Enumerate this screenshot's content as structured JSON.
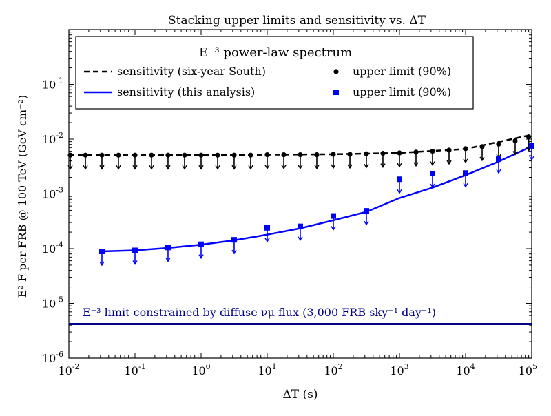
{
  "chart_data": {
    "type": "scatter",
    "title": "Stacking upper limits and sensitivity vs. ΔT",
    "xlabel": "ΔT (s)",
    "ylabel": "E² F per FRB @ 100 TeV (GeV cm⁻²)",
    "xscale": "log",
    "yscale": "log",
    "xlim": [
      0.01,
      100000
    ],
    "ylim": [
      1e-06,
      1
    ],
    "grid": false,
    "legend_placement": "upper-left",
    "x_ticks": [
      {
        "value": 0.01,
        "base": "10",
        "exp": "-2"
      },
      {
        "value": 0.1,
        "base": "10",
        "exp": "-1"
      },
      {
        "value": 1,
        "base": "10",
        "exp": "0"
      },
      {
        "value": 10,
        "base": "10",
        "exp": "1"
      },
      {
        "value": 100,
        "base": "10",
        "exp": "2"
      },
      {
        "value": 1000,
        "base": "10",
        "exp": "3"
      },
      {
        "value": 10000,
        "base": "10",
        "exp": "4"
      },
      {
        "value": 100000,
        "base": "10",
        "exp": "5"
      }
    ],
    "y_ticks": [
      {
        "value": 1e-06,
        "base": "10",
        "exp": "-6"
      },
      {
        "value": 1e-05,
        "base": "10",
        "exp": "-5"
      },
      {
        "value": 0.0001,
        "base": "10",
        "exp": "-4"
      },
      {
        "value": 0.001,
        "base": "10",
        "exp": "-3"
      },
      {
        "value": 0.01,
        "base": "10",
        "exp": "-2"
      },
      {
        "value": 0.1,
        "base": "10",
        "exp": "-1"
      }
    ],
    "legend": {
      "title": "E⁻³ power-law spectrum",
      "entries": [
        {
          "label": "sensitivity (six-year South)",
          "marker": "dashed-line",
          "color": "#000000"
        },
        {
          "label": "upper limit (90%)",
          "marker": "circle",
          "color": "#000000"
        },
        {
          "label": "sensitivity (this analysis)",
          "marker": "solid-line",
          "color": "#0000ff"
        },
        {
          "label": "upper limit (90%)",
          "marker": "square",
          "color": "#0000ff"
        }
      ]
    },
    "diffuse_limit": {
      "label": "E⁻³ limit constrained by diffuse νμ flux (3,000 FRB sky⁻¹ day⁻¹)",
      "y": 4.2e-06,
      "color": "#00008b"
    },
    "series": [
      {
        "name": "sensitivity (six-year South)",
        "style": "dashed-line",
        "color": "#000000",
        "x": [
          0.01,
          0.1,
          1,
          10,
          100,
          1000,
          10000,
          100000
        ],
        "y": [
          0.0051,
          0.0051,
          0.0051,
          0.0052,
          0.0053,
          0.0056,
          0.0066,
          0.012
        ]
      },
      {
        "name": "upper limit (90%)",
        "style": "circle",
        "color": "#000000",
        "x": [
          0.0105,
          0.0178,
          0.0316,
          0.0562,
          0.1,
          0.178,
          0.316,
          0.562,
          1,
          1.78,
          3.16,
          5.62,
          10,
          17.8,
          31.6,
          56.2,
          100,
          178,
          316,
          562,
          1000,
          1778,
          3162,
          5623,
          10000,
          17783,
          31623,
          56234,
          90000
        ],
        "y": [
          0.0051,
          0.0051,
          0.0051,
          0.0051,
          0.0051,
          0.0051,
          0.0051,
          0.0051,
          0.0051,
          0.0051,
          0.0051,
          0.0051,
          0.0052,
          0.0052,
          0.0052,
          0.0052,
          0.0053,
          0.0053,
          0.0054,
          0.0055,
          0.0056,
          0.0058,
          0.006,
          0.0063,
          0.0067,
          0.0073,
          0.0081,
          0.0093,
          0.011
        ]
      },
      {
        "name": "sensitivity (this analysis)",
        "style": "solid-line",
        "color": "#0000ff",
        "x": [
          0.0316,
          0.1,
          0.316,
          1,
          3.16,
          10,
          31.6,
          100,
          316,
          1000,
          3162,
          10000,
          31623,
          100000
        ],
        "y": [
          8.9e-05,
          9.3e-05,
          0.000103,
          0.000118,
          0.000142,
          0.00018,
          0.000235,
          0.00033,
          0.00047,
          0.00084,
          0.0013,
          0.0022,
          0.0039,
          0.0074
        ]
      },
      {
        "name": "upper limit (90%)",
        "style": "square",
        "color": "#0000ff",
        "x": [
          0.0316,
          0.1,
          0.316,
          1,
          3.16,
          10,
          31.6,
          100,
          316,
          1000,
          3162,
          10000,
          31623,
          100000
        ],
        "y": [
          8.9e-05,
          9.3e-05,
          0.000105,
          0.00012,
          0.000145,
          0.00024,
          0.000255,
          0.000395,
          0.00049,
          0.00185,
          0.00235,
          0.0024,
          0.0043,
          0.0075
        ]
      }
    ]
  }
}
